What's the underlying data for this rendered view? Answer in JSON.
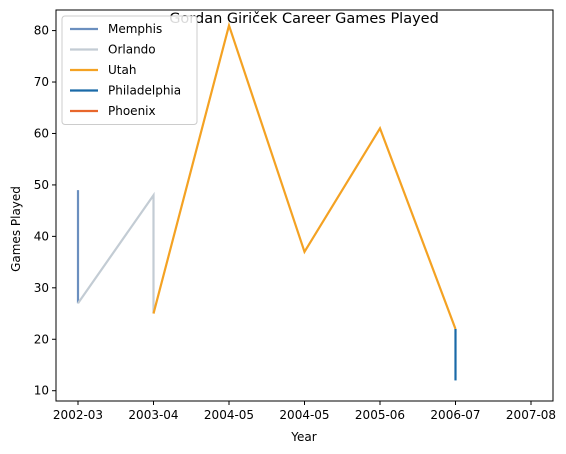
{
  "chart_data": {
    "type": "line",
    "title": "Gordan Giriček Career Games Played",
    "xlabel": "Year",
    "ylabel": "Games Played",
    "categories": [
      "2002-03",
      "2003-04",
      "2004-05",
      "2004-05",
      "2005-06",
      "2006-07",
      "2007-08"
    ],
    "ylim": [
      8,
      84
    ],
    "yticks": [
      10,
      20,
      30,
      40,
      50,
      60,
      70,
      80
    ],
    "grid": false,
    "legend_position": "top-left",
    "series": [
      {
        "name": "Memphis",
        "color": "#6b8fbf",
        "points": [
          [
            0,
            49
          ],
          [
            0,
            27
          ]
        ]
      },
      {
        "name": "Orlando",
        "color": "#c3ccd4",
        "points": [
          [
            0,
            27
          ],
          [
            1,
            48
          ],
          [
            1,
            25
          ]
        ]
      },
      {
        "name": "Utah",
        "color": "#f4a223",
        "points": [
          [
            1,
            25
          ],
          [
            2,
            81
          ],
          [
            3,
            37
          ],
          [
            4,
            61
          ],
          [
            5,
            22
          ]
        ]
      },
      {
        "name": "Philadelphia",
        "color": "#1a6aa8",
        "points": [
          [
            5,
            22
          ],
          [
            5,
            12
          ]
        ]
      },
      {
        "name": "Phoenix",
        "color": "#e8672c",
        "points": []
      }
    ]
  }
}
